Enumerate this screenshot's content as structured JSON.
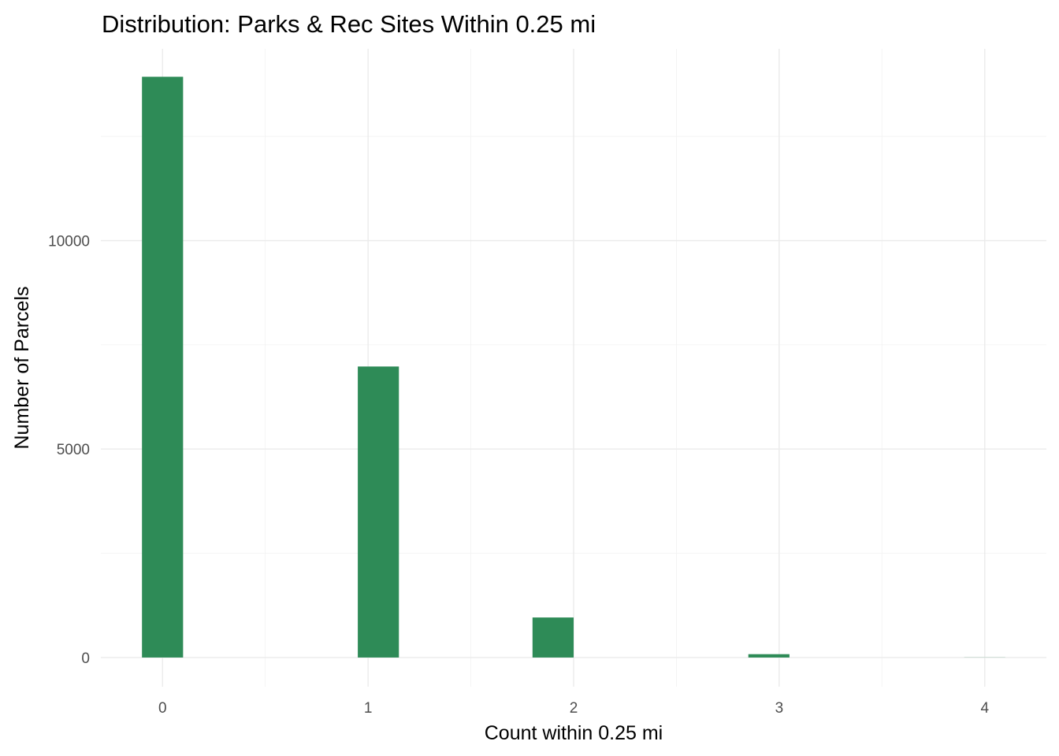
{
  "chart_data": {
    "type": "bar",
    "title": "Distribution: Parks & Rec Sites Within 0.25 mi",
    "xlabel": "Count within 0.25 mi",
    "ylabel": "Number of Parcels",
    "x_ticks": [
      "0",
      "1",
      "2",
      "3",
      "4"
    ],
    "y_ticks": [
      "0",
      "5000",
      "10000"
    ],
    "bars": [
      {
        "x_center": 0.0,
        "width": 0.2,
        "value": 13930
      },
      {
        "x_center": 1.05,
        "width": 0.2,
        "value": 6980
      },
      {
        "x_center": 1.9,
        "width": 0.2,
        "value": 960
      },
      {
        "x_center": 2.95,
        "width": 0.2,
        "value": 80
      },
      {
        "x_center": 4.0,
        "width": 0.2,
        "value": 3
      }
    ],
    "xlim": [
      -0.3,
      4.3
    ],
    "ylim": [
      -700,
      14600
    ],
    "bar_color": "#2E8B57",
    "grid": true
  }
}
